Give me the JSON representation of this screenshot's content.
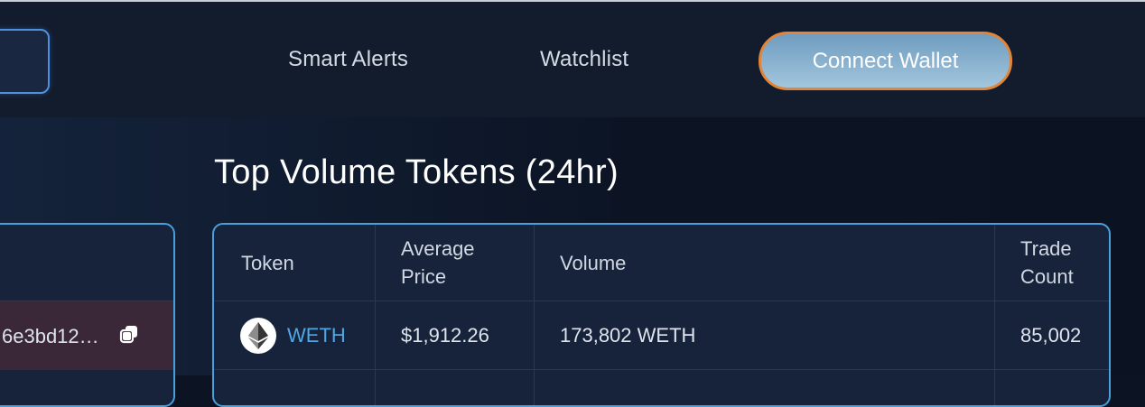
{
  "nav": {
    "links": [
      "Smart Alerts",
      "Watchlist"
    ],
    "connect_wallet": "Connect Wallet"
  },
  "section": {
    "title": "Top Volume Tokens (24hr)"
  },
  "left_panel": {
    "row_text": "6e3bd12…"
  },
  "table": {
    "headers": {
      "token": "Token",
      "average_price_line1": "Average",
      "average_price_line2": "Price",
      "volume": "Volume",
      "trade_count_line1": "Trade",
      "trade_count_line2": "Count"
    },
    "rows": [
      {
        "token": "WETH",
        "average_price": "$1,912.26",
        "volume": "173,802 WETH",
        "trade_count": "85,002",
        "icon": "ethereum-icon"
      }
    ]
  },
  "colors": {
    "accent_border": "#4aa0dc",
    "connect_button_border": "#e0853a",
    "token_link": "#4fa8e6"
  }
}
